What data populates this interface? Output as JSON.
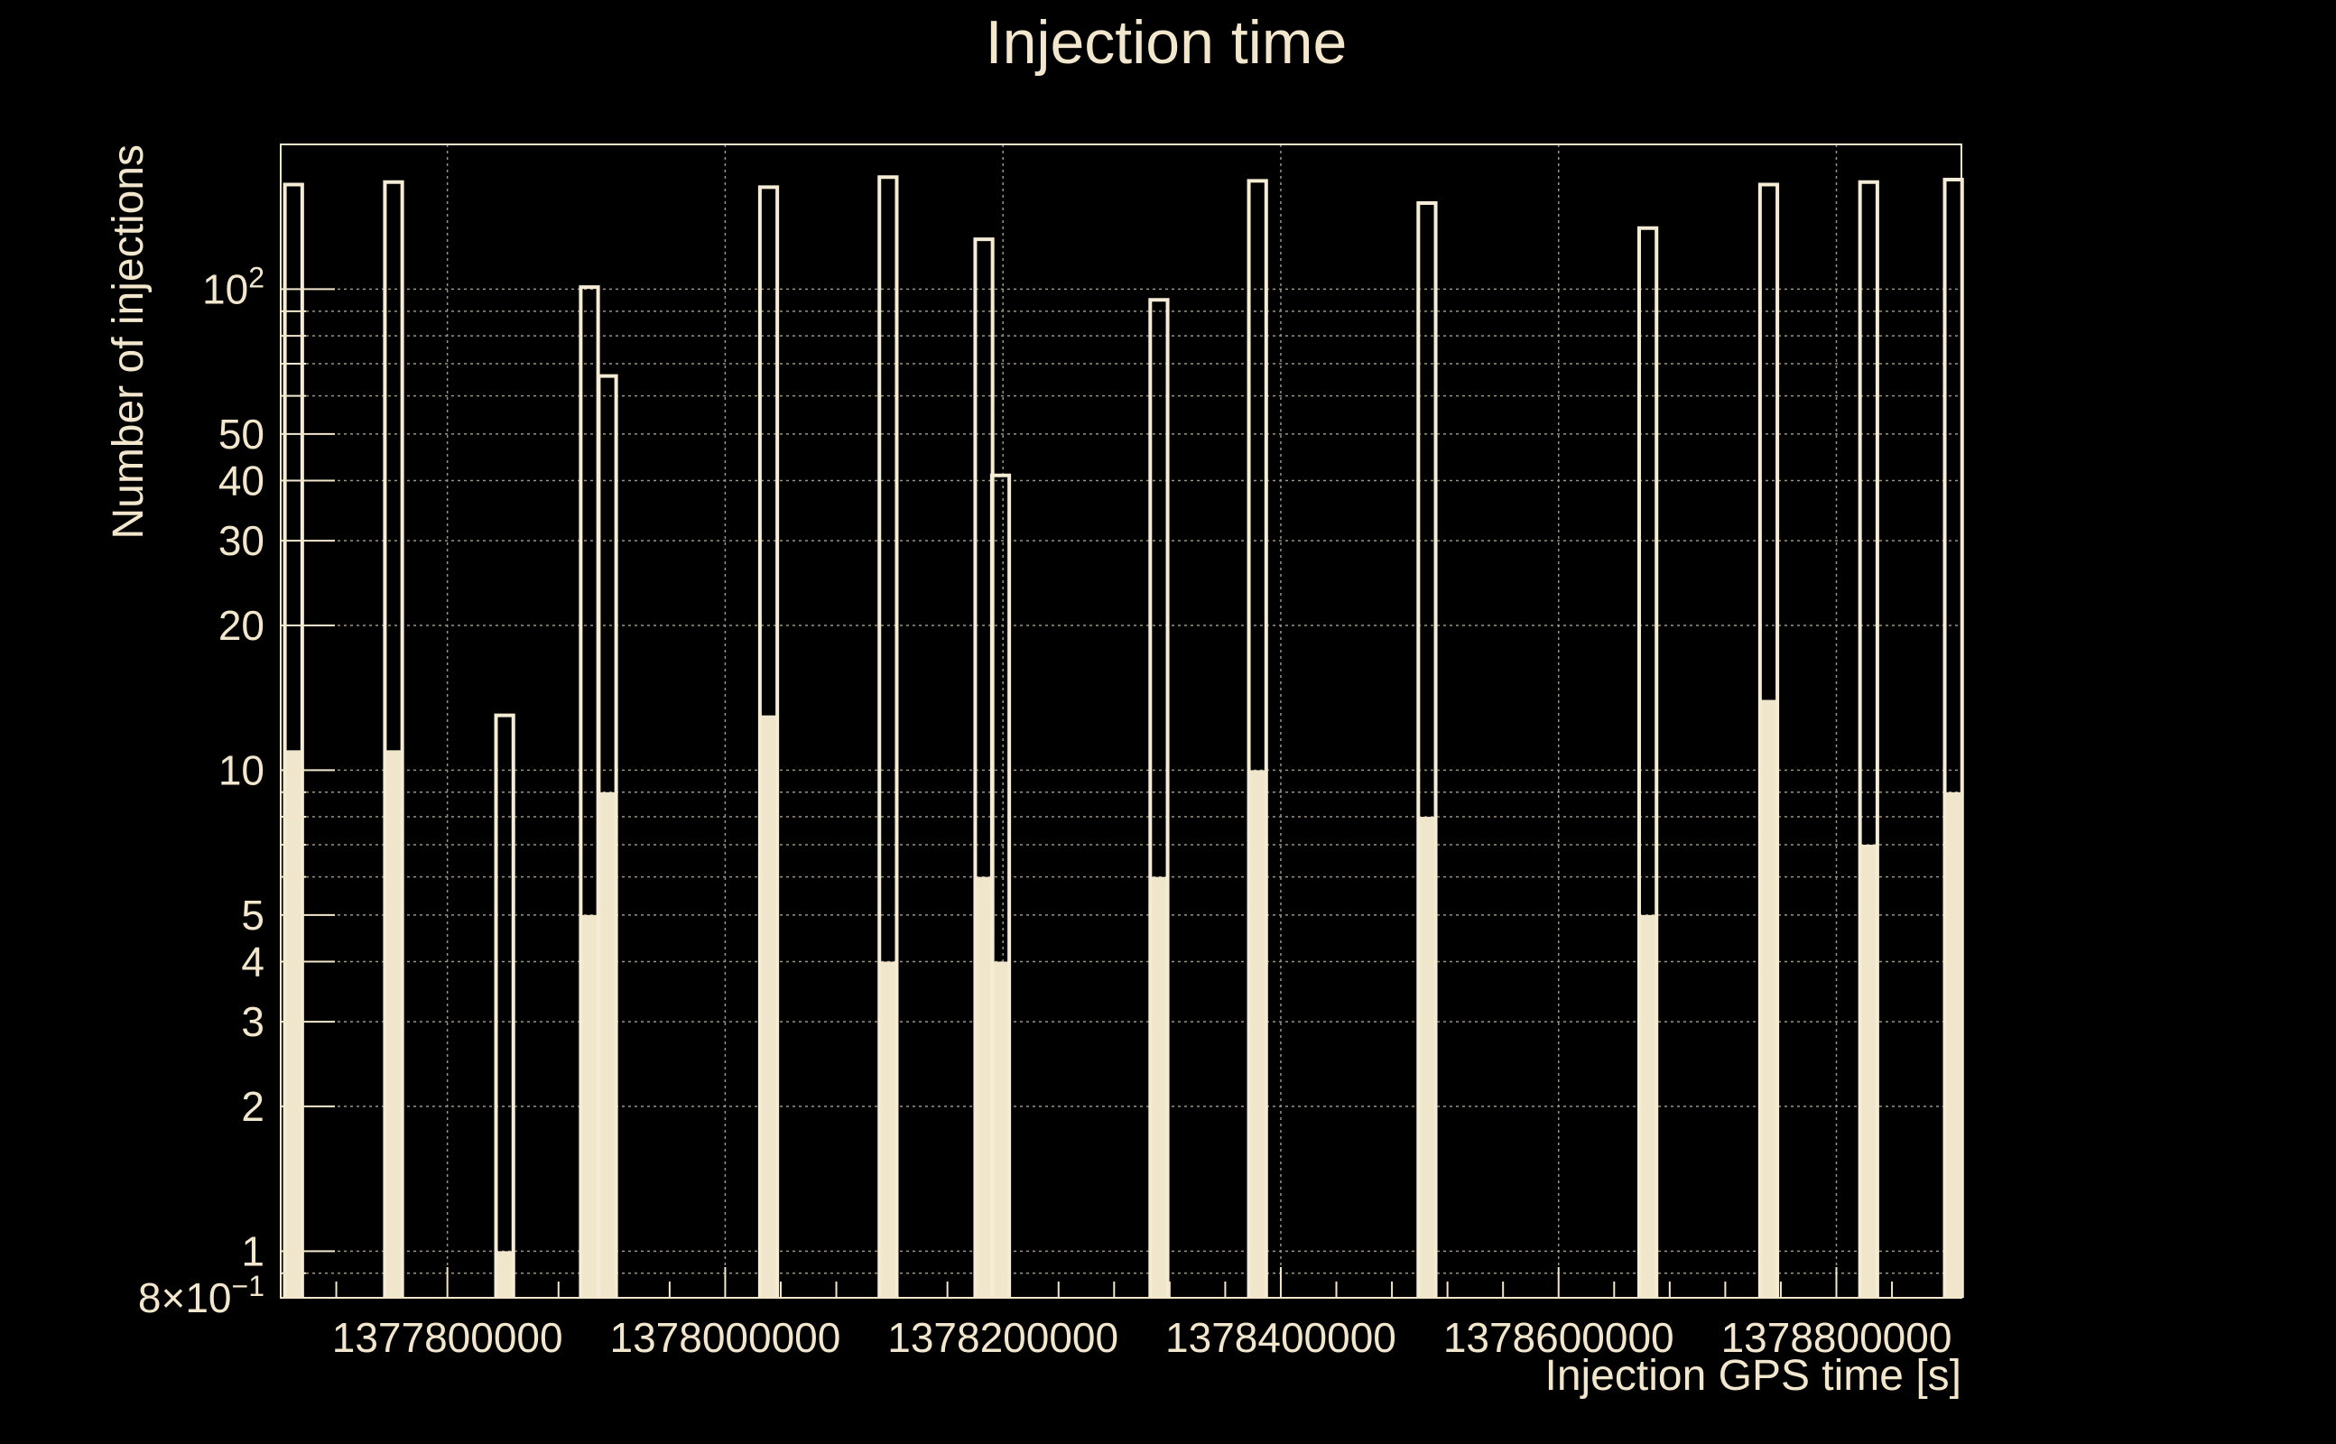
{
  "chart_data": {
    "type": "bar",
    "title": "Injection time",
    "xlabel": "Injection GPS time [s]",
    "ylabel": "Number of injections",
    "y_scale": "log",
    "ylim": [
      0.8,
      200
    ],
    "xlim": [
      1377680000,
      1378890000
    ],
    "grid": true,
    "x_ticks": [
      "1377800000",
      "1378000000",
      "1378200000",
      "1378400000",
      "1378600000",
      "1378800000"
    ],
    "x_tick_values": [
      1377800000,
      1378000000,
      1378200000,
      1378400000,
      1378600000,
      1378800000
    ],
    "y_ticks": [
      {
        "value": 0.8,
        "label": "8×10⁻¹",
        "mantissa": "8×10",
        "exp": "−1"
      },
      {
        "value": 1,
        "label": "1"
      },
      {
        "value": 2,
        "label": "2"
      },
      {
        "value": 3,
        "label": "3"
      },
      {
        "value": 4,
        "label": "4"
      },
      {
        "value": 5,
        "label": "5"
      },
      {
        "value": 10,
        "label": "10"
      },
      {
        "value": 20,
        "label": "20"
      },
      {
        "value": 30,
        "label": "30"
      },
      {
        "value": 40,
        "label": "40"
      },
      {
        "value": 50,
        "label": "50"
      },
      {
        "value": 100,
        "label": "10²",
        "mantissa": "10",
        "exp": "2"
      }
    ],
    "bin_width": 12500,
    "series": [
      {
        "style": "outline",
        "bins": [
          {
            "x": 1377683000,
            "value": 165
          },
          {
            "x": 1377755000,
            "value": 167
          },
          {
            "x": 1377835000,
            "value": 13
          },
          {
            "x": 1377896000,
            "value": 101
          },
          {
            "x": 1377909000,
            "value": 66
          },
          {
            "x": 1378025000,
            "value": 163
          },
          {
            "x": 1378111000,
            "value": 171
          },
          {
            "x": 1378180000,
            "value": 127
          },
          {
            "x": 1378192000,
            "value": 41
          },
          {
            "x": 1378306000,
            "value": 95
          },
          {
            "x": 1378377000,
            "value": 168
          },
          {
            "x": 1378499000,
            "value": 151
          },
          {
            "x": 1378658000,
            "value": 134
          },
          {
            "x": 1378745000,
            "value": 165
          },
          {
            "x": 1378817000,
            "value": 167
          },
          {
            "x": 1378878000,
            "value": 169
          }
        ]
      },
      {
        "style": "filled",
        "bins": [
          {
            "x": 1377683000,
            "value": 11
          },
          {
            "x": 1377755000,
            "value": 11
          },
          {
            "x": 1377835000,
            "value": 1
          },
          {
            "x": 1377896000,
            "value": 5
          },
          {
            "x": 1377909000,
            "value": 9
          },
          {
            "x": 1378025000,
            "value": 13
          },
          {
            "x": 1378111000,
            "value": 4
          },
          {
            "x": 1378180000,
            "value": 6
          },
          {
            "x": 1378192000,
            "value": 4
          },
          {
            "x": 1378306000,
            "value": 6
          },
          {
            "x": 1378377000,
            "value": 10
          },
          {
            "x": 1378499000,
            "value": 8
          },
          {
            "x": 1378658000,
            "value": 5
          },
          {
            "x": 1378745000,
            "value": 14
          },
          {
            "x": 1378817000,
            "value": 7
          },
          {
            "x": 1378878000,
            "value": 9
          }
        ]
      }
    ]
  }
}
